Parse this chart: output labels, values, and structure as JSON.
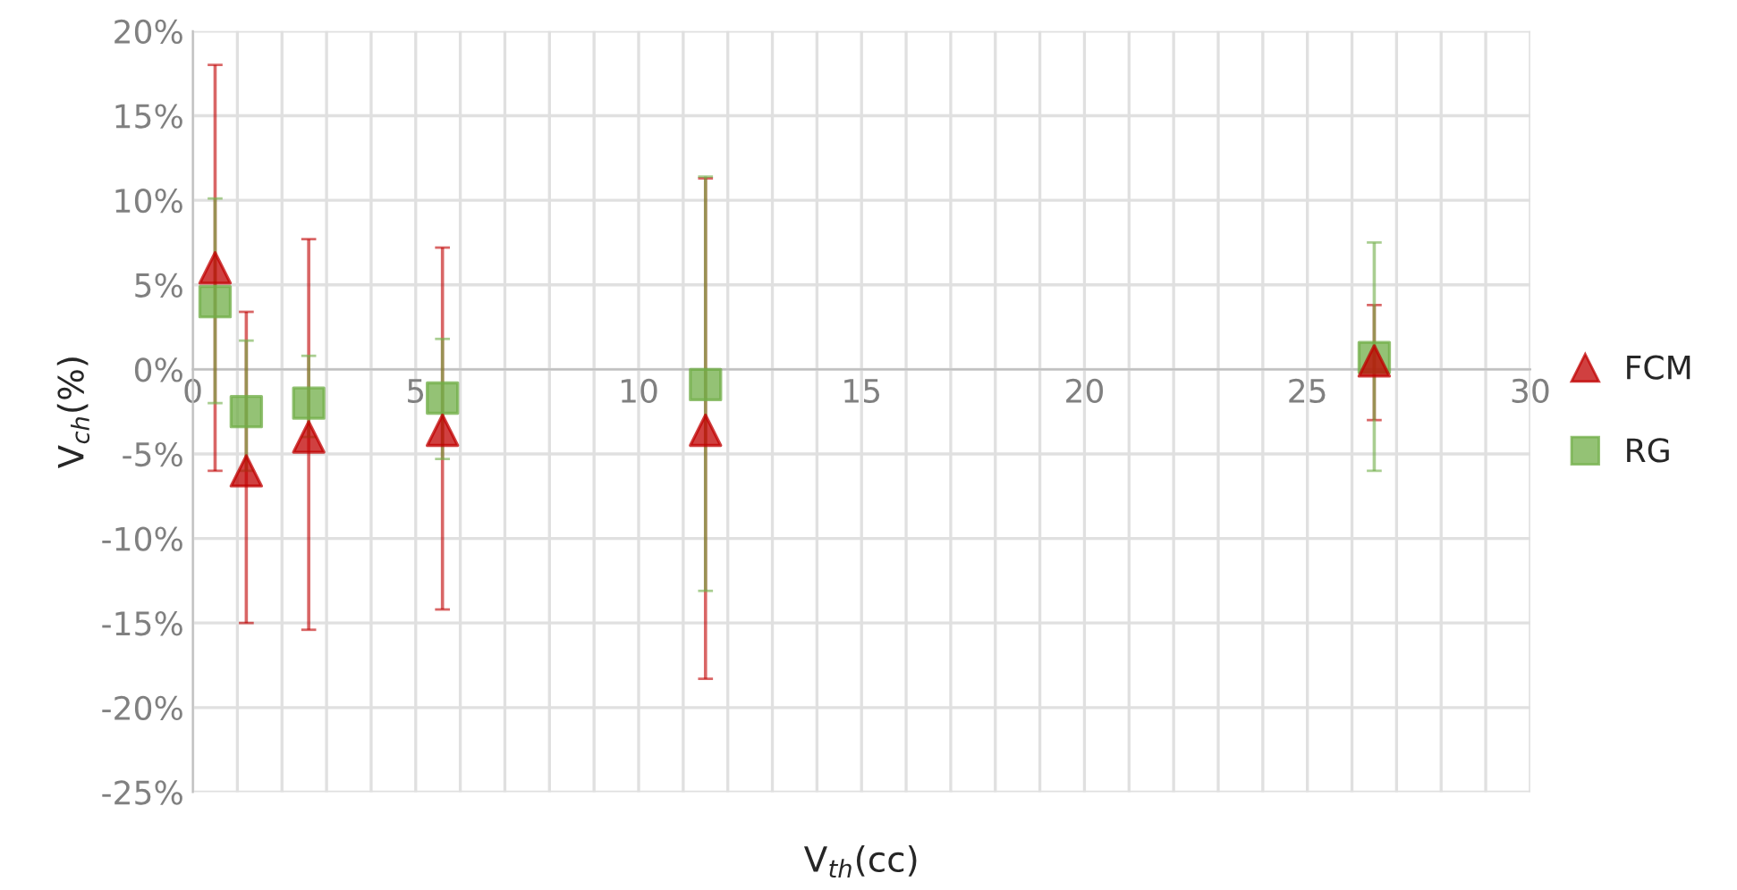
{
  "chart_data": {
    "type": "scatter",
    "xlabel": "V$_{th}$(cc)",
    "ylabel": "V$_{ch}$(%)",
    "xlim": [
      0,
      30
    ],
    "ylim": [
      -25,
      20
    ],
    "xticks": [
      0,
      {
        "value": 1,
        "label": null
      },
      {
        "value": 2,
        "label": null
      },
      {
        "value": 3,
        "label": null
      },
      {
        "value": 4,
        "label": null
      },
      5,
      {
        "value": 6,
        "label": null
      },
      {
        "value": 7,
        "label": null
      },
      {
        "value": 8,
        "label": null
      },
      {
        "value": 9,
        "label": null
      },
      10,
      {
        "value": 11,
        "label": null
      },
      {
        "value": 12,
        "label": null
      },
      {
        "value": 13,
        "label": null
      },
      {
        "value": 14,
        "label": null
      },
      15,
      {
        "value": 16,
        "label": null
      },
      {
        "value": 17,
        "label": null
      },
      {
        "value": 18,
        "label": null
      },
      {
        "value": 19,
        "label": null
      },
      20,
      {
        "value": 21,
        "label": null
      },
      {
        "value": 22,
        "label": null
      },
      {
        "value": 23,
        "label": null
      },
      {
        "value": 24,
        "label": null
      },
      25,
      {
        "value": 26,
        "label": null
      },
      {
        "value": 27,
        "label": null
      },
      {
        "value": 28,
        "label": null
      },
      {
        "value": 29,
        "label": null
      },
      30
    ],
    "yticks": [
      {
        "value": -25,
        "label": "-25%"
      },
      {
        "value": -20,
        "label": "-20%"
      },
      {
        "value": -15,
        "label": "-15%"
      },
      {
        "value": -10,
        "label": "-10%"
      },
      {
        "value": -5,
        "label": "-5%"
      },
      {
        "value": 0,
        "label": "0%"
      },
      {
        "value": 5,
        "label": "5%"
      },
      {
        "value": 10,
        "label": "10%"
      },
      {
        "value": 15,
        "label": "15%"
      },
      {
        "value": 20,
        "label": "20%"
      }
    ],
    "grid": true,
    "legend": "right",
    "series": [
      {
        "name": "FCM",
        "color": "#c00000",
        "marker": "triangle",
        "x": [
          0.5,
          1.2,
          2.6,
          5.6,
          11.5,
          26.5
        ],
        "values": [
          6.0,
          -6.0,
          -4.0,
          -3.6,
          -3.6,
          0.5
        ],
        "errors": [
          [
            -6.0,
            18.0
          ],
          [
            -15.0,
            3.4
          ],
          [
            -15.4,
            7.7
          ],
          [
            -14.2,
            7.2
          ],
          [
            -18.3,
            11.3
          ],
          [
            -3.0,
            3.8
          ]
        ]
      },
      {
        "name": "RG",
        "color": "#70ad47",
        "marker": "square",
        "x": [
          0.5,
          1.2,
          2.6,
          5.6,
          11.5,
          26.5
        ],
        "values": [
          4.0,
          -2.5,
          -2.0,
          -1.7,
          -0.9,
          0.7
        ],
        "errors": [
          [
            -2.0,
            10.1
          ],
          [
            -6.0,
            1.7
          ],
          [
            -4.0,
            0.8
          ],
          [
            -5.3,
            1.8
          ],
          [
            -13.1,
            11.4
          ],
          [
            -6.0,
            7.5
          ]
        ]
      }
    ]
  }
}
